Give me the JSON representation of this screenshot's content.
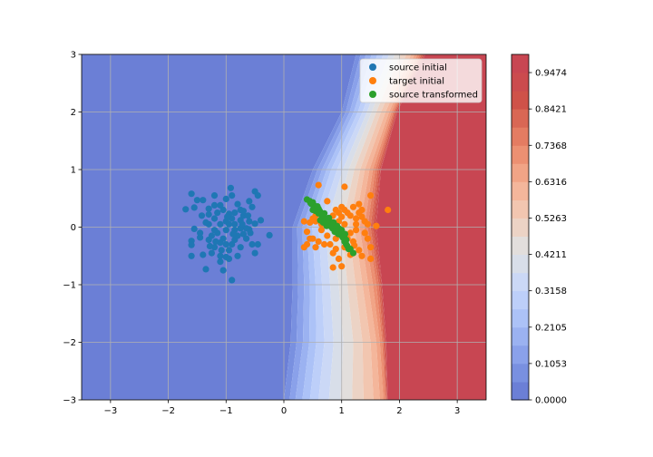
{
  "chart_data": {
    "type": "scatter",
    "background": "filled-contour",
    "xlim": [
      -3.5,
      3.5
    ],
    "ylim": [
      -3,
      3
    ],
    "x_ticks": [
      -3,
      -2,
      -1,
      0,
      1,
      2,
      3
    ],
    "y_ticks": [
      -3,
      -2,
      -1,
      0,
      1,
      2,
      3
    ],
    "grid": true,
    "legend_position": "top-right",
    "legend": [
      {
        "label": "source initial",
        "color": "#1f77b4"
      },
      {
        "label": "target initial",
        "color": "#ff7f0e"
      },
      {
        "label": "source transformed",
        "color": "#2ca02c"
      }
    ],
    "contour": {
      "colormap": "coolwarm",
      "levels": [
        0.0,
        0.0526,
        0.1053,
        0.1579,
        0.2105,
        0.2632,
        0.3158,
        0.3684,
        0.4211,
        0.4737,
        0.5263,
        0.5789,
        0.6316,
        0.6842,
        0.7368,
        0.7895,
        0.8421,
        0.8947,
        0.9474,
        1.0
      ],
      "level_colors": [
        "#6b7fd6",
        "#7990e0",
        "#8aa1ea",
        "#9bb2f1",
        "#acc2f7",
        "#bdcff9",
        "#cbd8f6",
        "#d8dee9",
        "#e2dedc",
        "#ecd3c5",
        "#f2c6b0",
        "#f4b69b",
        "#f1a486",
        "#ec9072",
        "#e47c62",
        "#d96754",
        "#cf5249",
        "#cb4b4e",
        "#c84652"
      ],
      "boundary": [
        {
          "y": -3,
          "x": [
            0.0,
            0.1,
            0.2,
            0.32,
            0.45,
            0.6,
            0.78,
            0.98,
            1.18,
            1.38,
            1.55,
            1.66,
            1.72,
            1.75,
            1.77,
            1.78,
            1.79,
            1.8
          ]
        },
        {
          "y": -2,
          "x": [
            0.12,
            0.22,
            0.33,
            0.44,
            0.56,
            0.7,
            0.86,
            1.03,
            1.2,
            1.36,
            1.5,
            1.6,
            1.66,
            1.7,
            1.72,
            1.74,
            1.76,
            1.77
          ]
        },
        {
          "y": -1,
          "x": [
            0.15,
            0.25,
            0.35,
            0.45,
            0.55,
            0.66,
            0.8,
            0.95,
            1.1,
            1.24,
            1.36,
            1.46,
            1.54,
            1.6,
            1.64,
            1.67,
            1.69,
            1.7
          ]
        },
        {
          "y": 0,
          "x": [
            0.15,
            0.23,
            0.32,
            0.4,
            0.49,
            0.6,
            0.72,
            0.86,
            1.0,
            1.12,
            1.22,
            1.31,
            1.39,
            1.45,
            1.5,
            1.54,
            1.57,
            1.6
          ]
        },
        {
          "y": 1,
          "x": [
            0.5,
            0.58,
            0.66,
            0.74,
            0.82,
            0.92,
            1.02,
            1.12,
            1.22,
            1.32,
            1.4,
            1.48,
            1.54,
            1.58,
            1.62,
            1.65,
            1.67,
            1.68
          ]
        },
        {
          "y": 2,
          "x": [
            1.0,
            1.07,
            1.14,
            1.21,
            1.28,
            1.36,
            1.44,
            1.52,
            1.6,
            1.68,
            1.76,
            1.82,
            1.86,
            1.89,
            1.91,
            1.93,
            1.95,
            1.96
          ]
        },
        {
          "y": 3,
          "x": [
            1.25,
            1.33,
            1.42,
            1.52,
            1.62,
            1.72,
            1.82,
            1.92,
            2.02,
            2.12,
            2.2,
            2.26,
            2.31,
            2.35,
            2.38,
            2.41,
            2.43,
            2.45
          ]
        }
      ]
    },
    "colorbar": {
      "ticks": [
        "0.0000",
        "0.1053",
        "0.2105",
        "0.3158",
        "0.4211",
        "0.5263",
        "0.6316",
        "0.7368",
        "0.8421",
        "0.9474"
      ],
      "tick_values": [
        0.0,
        0.1053,
        0.2105,
        0.3158,
        0.4211,
        0.5263,
        0.6316,
        0.7368,
        0.8421,
        0.9474
      ],
      "range": [
        0.0,
        1.0
      ]
    },
    "series": [
      {
        "name": "source initial",
        "color": "#1f77b4",
        "points": [
          [
            -0.92,
            0.68
          ],
          [
            -1.6,
            0.58
          ],
          [
            -1.5,
            0.47
          ],
          [
            -1.7,
            0.31
          ],
          [
            -1.55,
            0.34
          ],
          [
            -1.4,
            0.47
          ],
          [
            -1.3,
            0.32
          ],
          [
            -1.3,
            0.22
          ],
          [
            -1.2,
            0.55
          ],
          [
            -1.2,
            0.15
          ],
          [
            -1.1,
            0.38
          ],
          [
            -1.0,
            0.49
          ],
          [
            -0.9,
            0.55
          ],
          [
            -0.95,
            0.23
          ],
          [
            -0.85,
            0.05
          ],
          [
            -0.8,
            0.4
          ],
          [
            -0.75,
            0.3
          ],
          [
            -0.7,
            0.2
          ],
          [
            -0.6,
            0.45
          ],
          [
            -0.55,
            0.35
          ],
          [
            -0.5,
            0.62
          ],
          [
            -0.45,
            0.55
          ],
          [
            -0.4,
            0.12
          ],
          [
            -0.25,
            -0.14
          ],
          [
            -0.5,
            0.06
          ],
          [
            -0.6,
            -0.04
          ],
          [
            -1.55,
            -0.03
          ],
          [
            -1.6,
            -0.24
          ],
          [
            -1.6,
            -0.31
          ],
          [
            -1.45,
            -0.18
          ],
          [
            -1.4,
            -0.48
          ],
          [
            -1.6,
            -0.5
          ],
          [
            -1.3,
            -0.22
          ],
          [
            -1.2,
            -0.35
          ],
          [
            -1.15,
            -0.1
          ],
          [
            -1.1,
            -0.5
          ],
          [
            -1.1,
            -0.6
          ],
          [
            -1.05,
            -0.75
          ],
          [
            -1.0,
            -0.52
          ],
          [
            -0.95,
            -0.4
          ],
          [
            -0.9,
            -0.3
          ],
          [
            -0.85,
            -0.22
          ],
          [
            -0.8,
            -0.5
          ],
          [
            -0.75,
            -0.35
          ],
          [
            -0.7,
            -0.12
          ],
          [
            -0.65,
            -0.02
          ],
          [
            -0.55,
            -0.3
          ],
          [
            -0.5,
            -0.45
          ],
          [
            -0.45,
            -0.3
          ],
          [
            -0.9,
            -0.92
          ],
          [
            -1.35,
            -0.73
          ],
          [
            -1.1,
            -0.27
          ],
          [
            -1.2,
            -0.05
          ],
          [
            -1.3,
            0.05
          ],
          [
            -1.0,
            0.1
          ],
          [
            -0.95,
            0.05
          ],
          [
            -0.85,
            -0.05
          ],
          [
            -0.75,
            0.12
          ],
          [
            -1.05,
            -0.2
          ],
          [
            -1.25,
            -0.15
          ],
          [
            -0.9,
            0.15
          ],
          [
            -0.8,
            -0.15
          ],
          [
            -1.15,
            0.25
          ],
          [
            -0.7,
            0.28
          ],
          [
            -0.6,
            0.1
          ],
          [
            -1.0,
            -0.05
          ],
          [
            -1.2,
            0.38
          ],
          [
            -1.35,
            0.08
          ],
          [
            -1.45,
            -0.1
          ],
          [
            -0.65,
            -0.2
          ],
          [
            -0.95,
            -0.55
          ],
          [
            -1.25,
            -0.45
          ],
          [
            -1.05,
            0.3
          ],
          [
            -0.85,
            0.25
          ],
          [
            -0.75,
            -0.02
          ],
          [
            -1.1,
            0.05
          ],
          [
            -0.58,
            -0.1
          ],
          [
            -1.0,
            -0.3
          ],
          [
            -0.88,
            -0.12
          ],
          [
            -1.18,
            -0.25
          ],
          [
            -0.98,
            0.18
          ],
          [
            -0.72,
            0.05
          ],
          [
            -1.28,
            -0.33
          ],
          [
            -0.62,
            0.2
          ],
          [
            -1.42,
            0.2
          ],
          [
            -1.08,
            -0.4
          ]
        ]
      },
      {
        "name": "target initial",
        "color": "#ff7f0e",
        "points": [
          [
            0.6,
            0.73
          ],
          [
            1.05,
            0.7
          ],
          [
            1.5,
            0.55
          ],
          [
            1.8,
            0.3
          ],
          [
            1.6,
            0.02
          ],
          [
            1.35,
            0.3
          ],
          [
            1.4,
            0.1
          ],
          [
            1.3,
            0.4
          ],
          [
            1.2,
            0.35
          ],
          [
            1.15,
            0.2
          ],
          [
            1.25,
            0.05
          ],
          [
            1.05,
            0.3
          ],
          [
            1.0,
            0.35
          ],
          [
            0.95,
            0.25
          ],
          [
            0.9,
            0.3
          ],
          [
            0.85,
            0.2
          ],
          [
            0.8,
            0.1
          ],
          [
            0.75,
            0.45
          ],
          [
            0.7,
            0.15
          ],
          [
            0.6,
            0.3
          ],
          [
            0.55,
            0.1
          ],
          [
            0.5,
            0.15
          ],
          [
            0.45,
            0.08
          ],
          [
            0.35,
            0.1
          ],
          [
            0.4,
            -0.08
          ],
          [
            0.45,
            -0.2
          ],
          [
            0.35,
            -0.35
          ],
          [
            0.4,
            -0.3
          ],
          [
            0.5,
            -0.2
          ],
          [
            0.55,
            -0.35
          ],
          [
            0.6,
            -0.25
          ],
          [
            0.7,
            -0.3
          ],
          [
            0.8,
            -0.3
          ],
          [
            0.85,
            -0.45
          ],
          [
            0.9,
            -0.38
          ],
          [
            0.95,
            -0.55
          ],
          [
            1.0,
            -0.68
          ],
          [
            1.05,
            -0.35
          ],
          [
            1.1,
            -0.2
          ],
          [
            1.15,
            -0.48
          ],
          [
            1.2,
            -0.25
          ],
          [
            1.3,
            -0.4
          ],
          [
            1.35,
            -0.5
          ],
          [
            1.5,
            -0.55
          ],
          [
            1.5,
            -0.35
          ],
          [
            1.4,
            -0.1
          ],
          [
            1.45,
            -0.2
          ],
          [
            0.85,
            -0.7
          ],
          [
            1.25,
            0.15
          ],
          [
            1.1,
            0.25
          ],
          [
            1.35,
            0.18
          ],
          [
            0.65,
            -0.05
          ],
          [
            0.75,
            -0.15
          ],
          [
            0.95,
            0.1
          ],
          [
            1.05,
            0.05
          ],
          [
            1.15,
            -0.1
          ],
          [
            1.25,
            -0.05
          ],
          [
            1.3,
            0.25
          ],
          [
            0.55,
            0.2
          ],
          [
            0.65,
            0.05
          ],
          [
            0.85,
            0.05
          ],
          [
            1.0,
            0.18
          ],
          [
            1.45,
            0.05
          ],
          [
            1.22,
            -0.32
          ],
          [
            0.9,
            -0.2
          ]
        ]
      },
      {
        "name": "source transformed",
        "color": "#2ca02c",
        "points": [
          [
            0.4,
            0.48
          ],
          [
            0.45,
            0.45
          ],
          [
            0.48,
            0.4
          ],
          [
            0.5,
            0.43
          ],
          [
            0.52,
            0.38
          ],
          [
            0.55,
            0.35
          ],
          [
            0.58,
            0.3
          ],
          [
            0.6,
            0.32
          ],
          [
            0.62,
            0.28
          ],
          [
            0.65,
            0.22
          ],
          [
            0.68,
            0.2
          ],
          [
            0.7,
            0.18
          ],
          [
            0.72,
            0.15
          ],
          [
            0.75,
            0.12
          ],
          [
            0.78,
            0.1
          ],
          [
            0.8,
            0.08
          ],
          [
            0.82,
            0.05
          ],
          [
            0.85,
            0.03
          ],
          [
            0.88,
            0.0
          ],
          [
            0.9,
            -0.02
          ],
          [
            0.92,
            -0.05
          ],
          [
            0.95,
            -0.08
          ],
          [
            0.98,
            -0.1
          ],
          [
            1.0,
            -0.15
          ],
          [
            1.02,
            -0.18
          ],
          [
            1.05,
            -0.25
          ],
          [
            1.08,
            -0.3
          ],
          [
            1.1,
            -0.33
          ],
          [
            1.12,
            -0.38
          ],
          [
            1.15,
            -0.38
          ],
          [
            1.2,
            -0.45
          ],
          [
            0.55,
            0.28
          ],
          [
            0.6,
            0.24
          ],
          [
            0.66,
            0.16
          ],
          [
            0.72,
            0.1
          ],
          [
            0.76,
            0.06
          ],
          [
            0.84,
            -0.02
          ],
          [
            0.94,
            -0.12
          ],
          [
            1.04,
            -0.2
          ],
          [
            0.5,
            0.3
          ],
          [
            0.63,
            0.12
          ],
          [
            0.8,
            0.02
          ],
          [
            0.88,
            -0.08
          ],
          [
            0.96,
            -0.03
          ],
          [
            1.06,
            -0.12
          ],
          [
            0.7,
            0.24
          ],
          [
            0.58,
            0.36
          ],
          [
            0.46,
            0.42
          ],
          [
            0.74,
            0.02
          ],
          [
            0.86,
            0.08
          ],
          [
            0.78,
            0.16
          ],
          [
            0.92,
            0.02
          ],
          [
            1.0,
            -0.05
          ],
          [
            1.08,
            -0.22
          ],
          [
            0.68,
            0.08
          ]
        ]
      }
    ]
  }
}
